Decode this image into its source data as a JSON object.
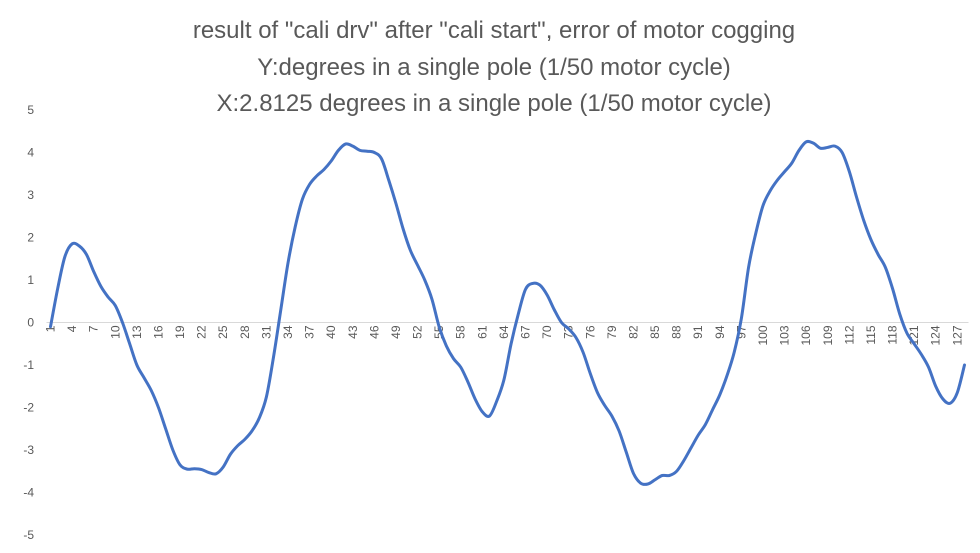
{
  "chart_data": {
    "type": "line",
    "title_lines": [
      "result of \"cali drv\" after \"cali start\", error of motor cogging",
      "Y:degrees in a single pole (1/50 motor cycle)",
      "X:2.8125 degrees in a single pole (1/50 motor cycle)"
    ],
    "xlabel": "",
    "ylabel": "",
    "ylim": [
      -5,
      5
    ],
    "y_ticks": [
      5,
      4,
      3,
      2,
      1,
      0,
      -1,
      -2,
      -3,
      -4,
      -5
    ],
    "x_range": [
      1,
      128
    ],
    "x_tick_labels": [
      "1",
      "4",
      "7",
      "10",
      "13",
      "16",
      "19",
      "22",
      "25",
      "28",
      "31",
      "34",
      "37",
      "40",
      "43",
      "46",
      "49",
      "52",
      "55",
      "58",
      "61",
      "64",
      "67",
      "70",
      "73",
      "76",
      "79",
      "82",
      "85",
      "88",
      "91",
      "94",
      "97",
      "100",
      "103",
      "106",
      "109",
      "112",
      "115",
      "118",
      "121",
      "124",
      "127"
    ],
    "grid": false,
    "legend": "none",
    "colors": {
      "line": "#4472c4",
      "axis": "#d9d9d9",
      "text": "#595959"
    },
    "series": [
      {
        "x": [
          1,
          2,
          3,
          4,
          5,
          6,
          7,
          8,
          9,
          10,
          11,
          12,
          13,
          14,
          15,
          16,
          17,
          18,
          19,
          20,
          21,
          22,
          23,
          24,
          25,
          26,
          27,
          28,
          29,
          30,
          31,
          32,
          33,
          34,
          35,
          36,
          37,
          38,
          39,
          40,
          41,
          42,
          43,
          44,
          45,
          46,
          47,
          48,
          49,
          50,
          51,
          52,
          53,
          54,
          55,
          56,
          57,
          58,
          59,
          60,
          61,
          62,
          63,
          64,
          65,
          66,
          67,
          68,
          69,
          70,
          71,
          72,
          73,
          74,
          75,
          76,
          77,
          78,
          79,
          80,
          81,
          82,
          83,
          84,
          85,
          86,
          87,
          88,
          89,
          90,
          91,
          92,
          93,
          94,
          95,
          96,
          97,
          98,
          99,
          100,
          101,
          102,
          103,
          104,
          105,
          106,
          107,
          108,
          109,
          110,
          111,
          112,
          113,
          114,
          115,
          116,
          117,
          118,
          119,
          120,
          121,
          122,
          123,
          124,
          125,
          126,
          127,
          128
        ],
        "values": [
          -0.1,
          0.8,
          1.55,
          1.85,
          1.8,
          1.6,
          1.2,
          0.85,
          0.6,
          0.4,
          0.0,
          -0.5,
          -1.0,
          -1.3,
          -1.6,
          -2.0,
          -2.5,
          -3.0,
          -3.35,
          -3.45,
          -3.44,
          -3.46,
          -3.53,
          -3.56,
          -3.4,
          -3.1,
          -2.9,
          -2.75,
          -2.55,
          -2.25,
          -1.75,
          -0.8,
          0.3,
          1.4,
          2.25,
          2.9,
          3.25,
          3.45,
          3.6,
          3.8,
          4.05,
          4.2,
          4.15,
          4.05,
          4.03,
          4.0,
          3.85,
          3.35,
          2.8,
          2.2,
          1.7,
          1.35,
          1.0,
          0.55,
          -0.1,
          -0.55,
          -0.85,
          -1.05,
          -1.4,
          -1.8,
          -2.1,
          -2.2,
          -1.85,
          -1.35,
          -0.5,
          0.2,
          0.78,
          0.92,
          0.88,
          0.65,
          0.3,
          0.0,
          -0.15,
          -0.35,
          -0.7,
          -1.2,
          -1.65,
          -1.95,
          -2.2,
          -2.55,
          -3.05,
          -3.55,
          -3.78,
          -3.8,
          -3.7,
          -3.6,
          -3.6,
          -3.5,
          -3.25,
          -2.95,
          -2.65,
          -2.4,
          -2.05,
          -1.7,
          -1.25,
          -0.7,
          0.1,
          1.3,
          2.1,
          2.75,
          3.1,
          3.35,
          3.55,
          3.75,
          4.05,
          4.25,
          4.22,
          4.1,
          4.12,
          4.15,
          4.0,
          3.55,
          2.95,
          2.4,
          1.95,
          1.6,
          1.3,
          0.8,
          0.2,
          -0.25,
          -0.5,
          -0.75,
          -1.05,
          -1.5,
          -1.8,
          -1.9,
          -1.65,
          -1.0
        ]
      }
    ]
  }
}
